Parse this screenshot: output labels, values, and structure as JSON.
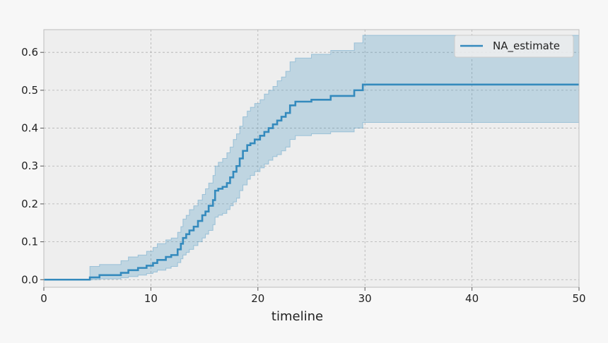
{
  "chart_data": {
    "type": "line",
    "title": "",
    "xlabel": "timeline",
    "ylabel": "",
    "xlim": [
      0,
      50
    ],
    "ylim": [
      -0.02,
      0.66
    ],
    "xticks": [
      0,
      10,
      20,
      30,
      40,
      50
    ],
    "yticks": [
      0.0,
      0.1,
      0.2,
      0.3,
      0.4,
      0.5,
      0.6
    ],
    "grid": true,
    "legend_position": "top-right",
    "series": [
      {
        "name": "NA_estimate",
        "color": "#348abd",
        "step": true,
        "x": [
          0,
          4.3,
          5.2,
          7.2,
          7.9,
          8.8,
          9.6,
          10.2,
          10.6,
          11.4,
          11.9,
          12.5,
          12.8,
          13.0,
          13.3,
          13.6,
          14.0,
          14.4,
          14.8,
          15.1,
          15.4,
          15.8,
          16.0,
          16.3,
          16.7,
          17.1,
          17.4,
          17.7,
          18.0,
          18.3,
          18.6,
          19.0,
          19.3,
          19.7,
          20.2,
          20.6,
          21.0,
          21.4,
          21.8,
          22.2,
          22.6,
          23.0,
          23.5,
          25.0,
          26.8,
          29.0,
          29.8,
          50
        ],
        "y": [
          0.0,
          0.006,
          0.012,
          0.018,
          0.025,
          0.031,
          0.037,
          0.044,
          0.052,
          0.06,
          0.065,
          0.08,
          0.095,
          0.11,
          0.12,
          0.13,
          0.14,
          0.155,
          0.17,
          0.18,
          0.195,
          0.21,
          0.235,
          0.24,
          0.245,
          0.255,
          0.27,
          0.285,
          0.3,
          0.32,
          0.34,
          0.355,
          0.36,
          0.37,
          0.38,
          0.39,
          0.4,
          0.41,
          0.42,
          0.43,
          0.44,
          0.46,
          0.47,
          0.475,
          0.485,
          0.5,
          0.515,
          0.515
        ]
      }
    ],
    "confidence_band": {
      "color": "#348abd",
      "opacity": 0.25,
      "x": [
        0,
        4.3,
        5.2,
        7.2,
        7.9,
        8.8,
        9.6,
        10.2,
        10.6,
        11.4,
        11.9,
        12.5,
        12.8,
        13.0,
        13.3,
        13.6,
        14.0,
        14.4,
        14.8,
        15.1,
        15.4,
        15.8,
        16.0,
        16.3,
        16.7,
        17.1,
        17.4,
        17.7,
        18.0,
        18.3,
        18.6,
        19.0,
        19.3,
        19.7,
        20.2,
        20.6,
        21.0,
        21.4,
        21.8,
        22.2,
        22.6,
        23.0,
        23.5,
        25.0,
        26.8,
        29.0,
        29.8,
        50
      ],
      "lower": [
        0.0,
        0.0,
        0.002,
        0.005,
        0.008,
        0.012,
        0.016,
        0.02,
        0.025,
        0.03,
        0.035,
        0.045,
        0.055,
        0.065,
        0.072,
        0.08,
        0.09,
        0.1,
        0.11,
        0.12,
        0.13,
        0.145,
        0.165,
        0.17,
        0.175,
        0.185,
        0.195,
        0.205,
        0.215,
        0.235,
        0.25,
        0.265,
        0.275,
        0.285,
        0.295,
        0.305,
        0.315,
        0.325,
        0.33,
        0.34,
        0.35,
        0.37,
        0.38,
        0.385,
        0.39,
        0.4,
        0.415,
        0.415
      ],
      "upper": [
        0.0,
        0.035,
        0.04,
        0.05,
        0.06,
        0.065,
        0.075,
        0.085,
        0.095,
        0.105,
        0.11,
        0.125,
        0.14,
        0.16,
        0.17,
        0.185,
        0.195,
        0.21,
        0.225,
        0.24,
        0.255,
        0.275,
        0.3,
        0.31,
        0.32,
        0.335,
        0.35,
        0.37,
        0.385,
        0.405,
        0.43,
        0.445,
        0.455,
        0.465,
        0.475,
        0.49,
        0.5,
        0.51,
        0.525,
        0.535,
        0.55,
        0.575,
        0.585,
        0.595,
        0.605,
        0.625,
        0.645,
        0.645
      ]
    }
  }
}
